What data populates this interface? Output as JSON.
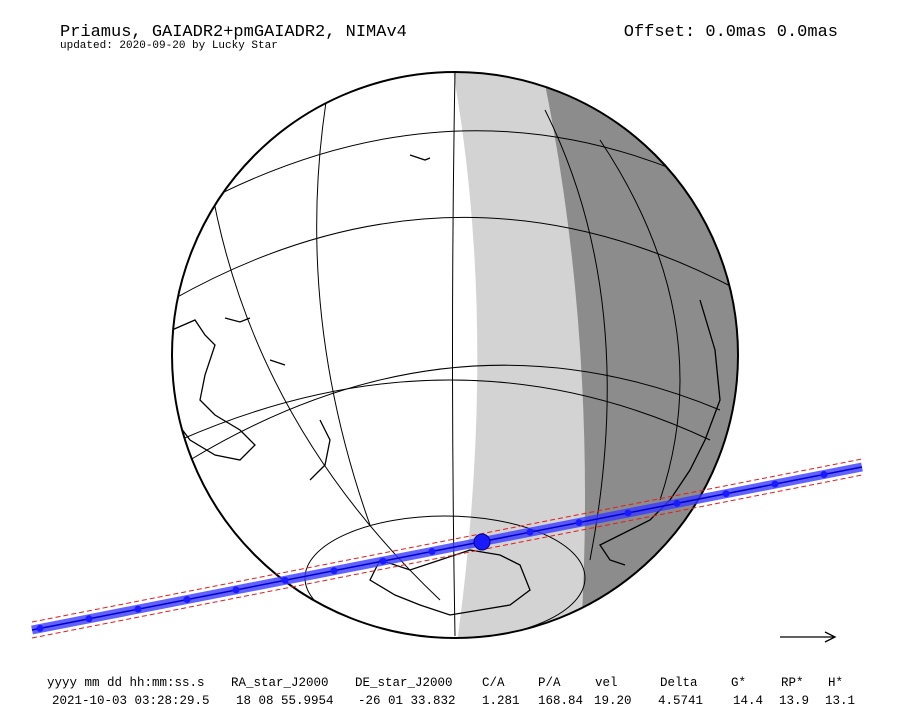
{
  "header": {
    "title": "Priamus, GAIADR2+pmGAIADR2, NIMAv4",
    "subtitle": "updated: 2020-09-20 by Lucky Star",
    "offset": "Offset: 0.0mas 0.0mas"
  },
  "table": {
    "columns": [
      "yyyy mm dd hh:mm:ss.s",
      "RA_star_J2000",
      "DE_star_J2000",
      "C/A",
      "P/A",
      "vel",
      "Delta",
      "G*",
      "RP*",
      "H*"
    ],
    "values": [
      "2021-10-03 03:28:29.5",
      "18 08 55.9954",
      "-26 01 33.832",
      "1.281",
      "168.84",
      "19.20",
      "4.5741",
      "14.4",
      "13.9",
      "13.1"
    ]
  }
}
